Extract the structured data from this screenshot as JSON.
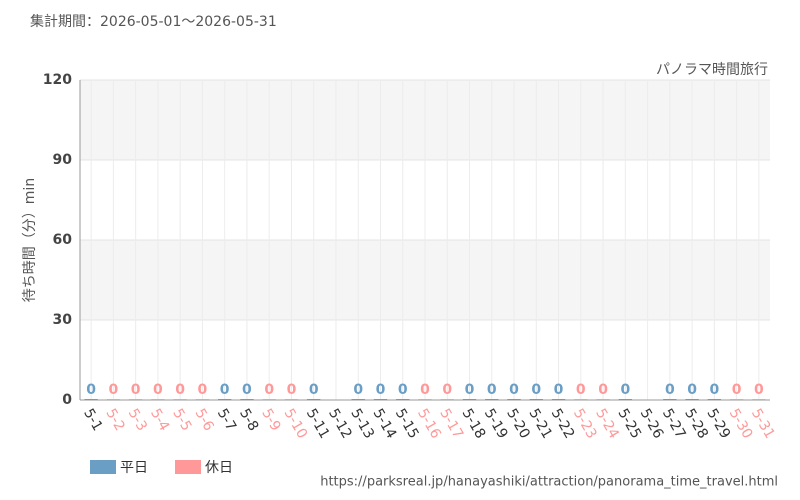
{
  "chart_data": {
    "type": "bar",
    "subtitle": "集計期間：2026-05-01〜2026-05-31",
    "annotation": "パノラマ時間旅行",
    "y_label": "待ち時間（分）min",
    "source": "https://parksreal.jp/hanayashiki/attraction/panorama_time_travel.html",
    "categories": [
      "5-1",
      "5-2",
      "5-3",
      "5-4",
      "5-5",
      "5-6",
      "5-7",
      "5-8",
      "5-9",
      "5-10",
      "5-11",
      "5-12",
      "5-13",
      "5-14",
      "5-15",
      "5-16",
      "5-17",
      "5-18",
      "5-19",
      "5-20",
      "5-21",
      "5-22",
      "5-23",
      "5-24",
      "5-25",
      "5-26",
      "5-27",
      "5-28",
      "5-29",
      "5-30",
      "5-31"
    ],
    "series": [
      {
        "name": "平日",
        "color": "#6a9ec5",
        "values": [
          0,
          null,
          null,
          null,
          null,
          null,
          0,
          0,
          null,
          null,
          0,
          null,
          0,
          0,
          0,
          null,
          null,
          0,
          0,
          0,
          0,
          0,
          null,
          null,
          0,
          null,
          0,
          0,
          0,
          null,
          null
        ]
      },
      {
        "name": "休日",
        "color": "#ff9999",
        "values": [
          null,
          0,
          0,
          0,
          0,
          0,
          null,
          null,
          0,
          0,
          null,
          null,
          null,
          null,
          null,
          0,
          0,
          null,
          null,
          null,
          null,
          null,
          0,
          0,
          null,
          null,
          null,
          null,
          null,
          0,
          0
        ]
      }
    ],
    "ylim": [
      0,
      120
    ],
    "yticks": [
      0,
      30,
      60,
      90,
      120
    ],
    "grid": true
  }
}
